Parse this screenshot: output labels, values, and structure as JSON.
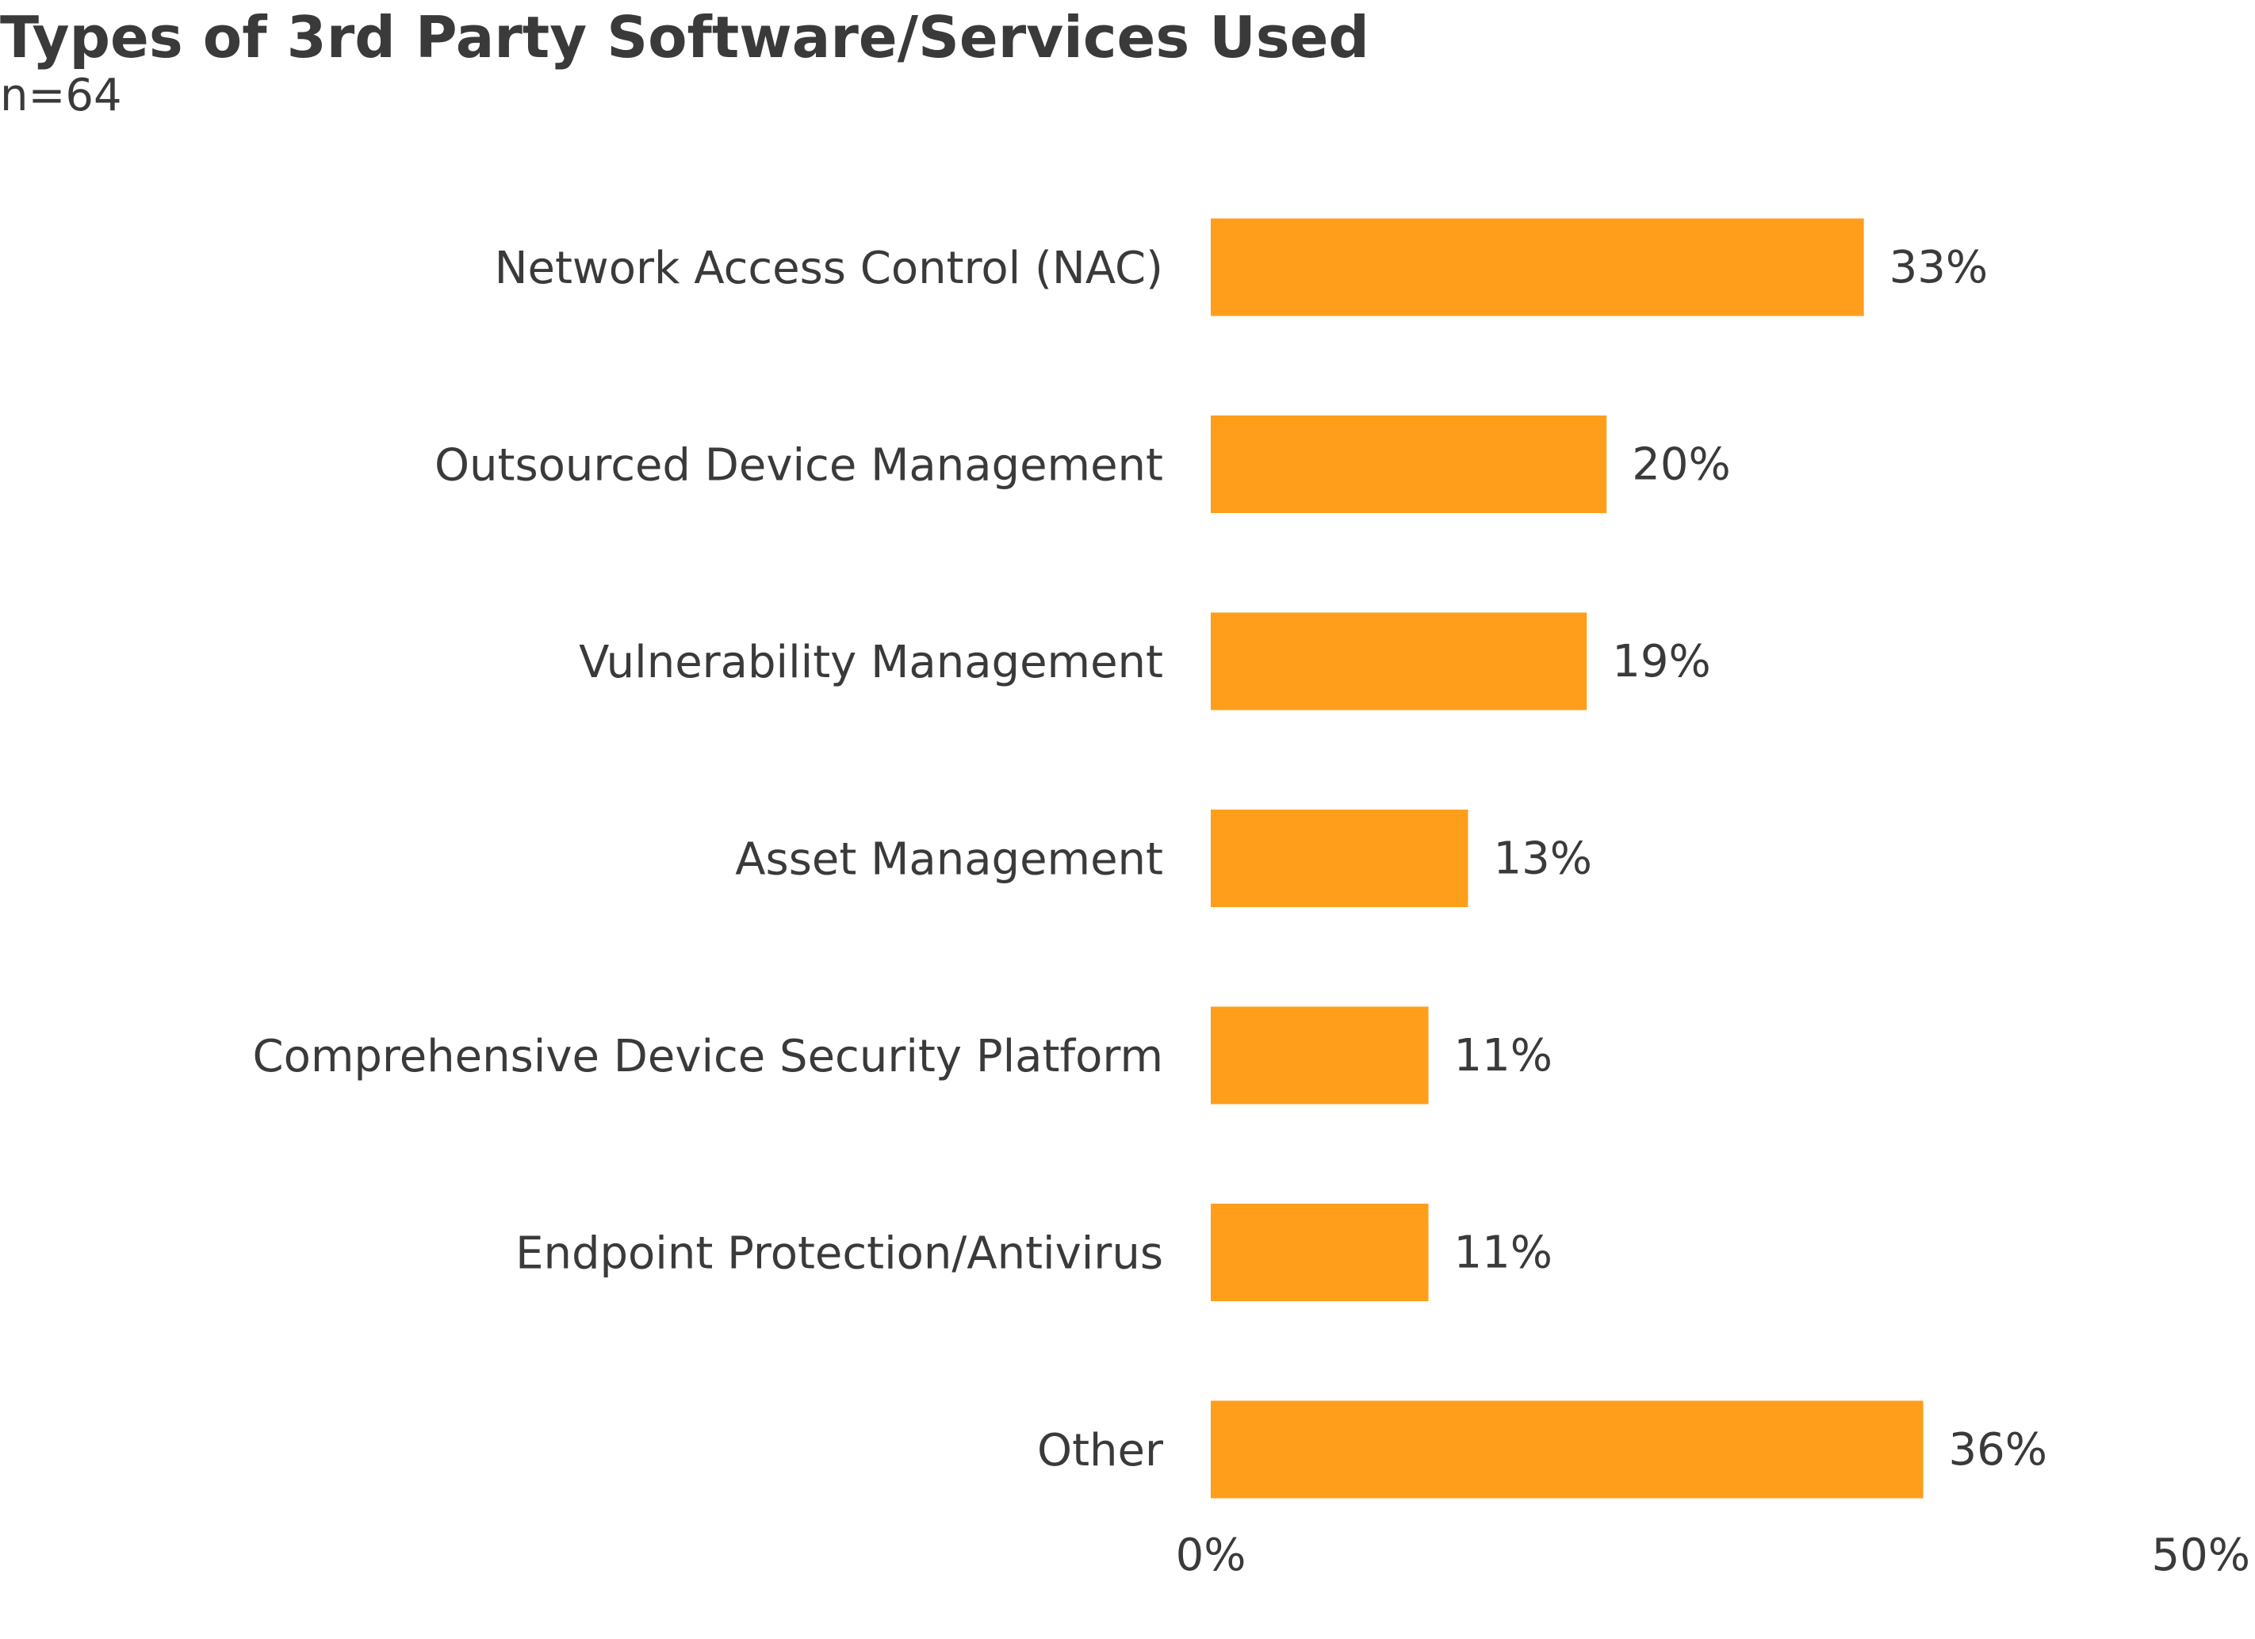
{
  "colors": {
    "bar": "#FF9E1B",
    "text": "#3a3a3a",
    "background": "#ffffff"
  },
  "chart_data": {
    "type": "bar",
    "orientation": "horizontal",
    "title": "Types of 3rd Party Software/Services Used",
    "subtitle": "n=64",
    "xlabel": "",
    "ylabel": "",
    "xlim": [
      0,
      50
    ],
    "x_ticks": [
      {
        "value": 0,
        "label": "0%"
      },
      {
        "value": 50,
        "label": "50%"
      }
    ],
    "grid": false,
    "legend": "none",
    "categories": [
      "Network Access Control (NAC)",
      "Outsourced Device Management",
      "Vulnerability Management",
      "Asset Management",
      "Comprehensive Device Security Platform",
      "Endpoint Protection/Antivirus",
      "Other"
    ],
    "values": [
      33,
      20,
      19,
      13,
      11,
      11,
      36
    ],
    "value_labels": [
      "33%",
      "20%",
      "19%",
      "13%",
      "11%",
      "11%",
      "36%"
    ]
  }
}
